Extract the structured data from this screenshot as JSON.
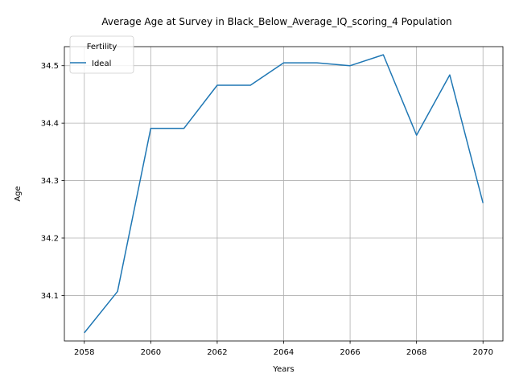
{
  "chart_data": {
    "type": "line",
    "title": "Average Age at Survey in Black_Below_Average_IQ_scoring_4 Population",
    "xlabel": "Years",
    "ylabel": "Age",
    "x": [
      2058,
      2059,
      2060,
      2061,
      2062,
      2063,
      2064,
      2065,
      2066,
      2067,
      2068,
      2069,
      2070
    ],
    "series": [
      {
        "name": "Ideal",
        "color": "#1f77b4",
        "values": [
          34.035,
          34.107,
          34.391,
          34.391,
          34.466,
          34.466,
          34.505,
          34.505,
          34.5,
          34.519,
          34.379,
          34.484,
          34.261
        ]
      }
    ],
    "xticks": [
      "2058",
      "2060",
      "2062",
      "2064",
      "2066",
      "2068",
      "2070"
    ],
    "yticks": [
      "34.1",
      "34.2",
      "34.3",
      "34.4",
      "34.5"
    ],
    "xlim": [
      2057.4,
      2070.6
    ],
    "ylim": [
      34.0208,
      34.5332
    ],
    "grid": true,
    "legend": {
      "title": "Fertility",
      "placement": "top-left"
    }
  }
}
